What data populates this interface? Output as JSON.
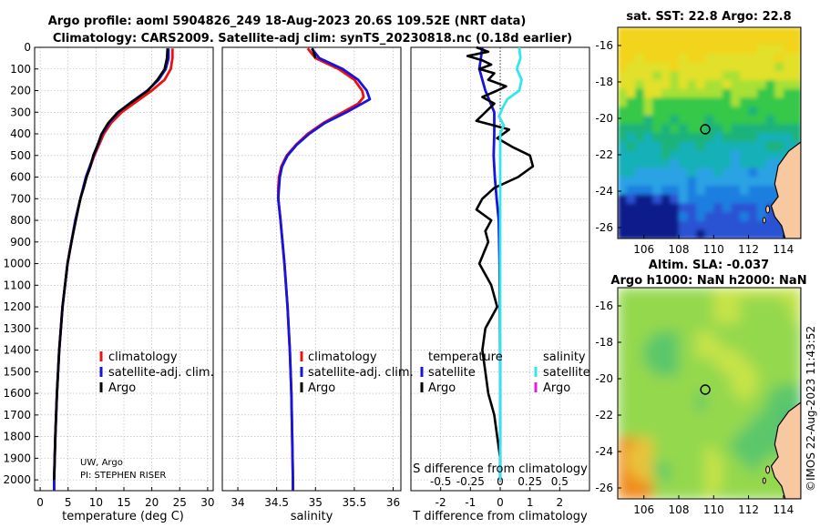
{
  "titles": {
    "line1": "Argo profile: aoml 5904826_249 18-Aug-2023 20.6S 109.52E (NRT data)",
    "line2": "Climatology: CARS2009. Satellite-adj clim: synTS_20230818.nc (0.18d earlier)"
  },
  "colors": {
    "climatology": "#ee1111",
    "satellite_clim": "#1515dd",
    "argo": "#000000",
    "sal_satellite": "#33e6ee",
    "sal_argo": "#dd22dd",
    "land": "#f8c9a0",
    "grid": "#b0b0b0"
  },
  "chart_data": [
    {
      "name": "temperature-profile",
      "type": "line",
      "xlabel": "temperature (deg C)",
      "xlim": [
        -1,
        31
      ],
      "ylim": [
        0,
        2050
      ],
      "xticks": [
        0,
        5,
        10,
        15,
        20,
        25,
        30
      ],
      "yticks": [
        0,
        100,
        200,
        300,
        400,
        500,
        600,
        700,
        800,
        900,
        1000,
        1100,
        1200,
        1300,
        1400,
        1500,
        1600,
        1700,
        1800,
        1900,
        2000
      ],
      "legend": [
        "climatology",
        "satellite-adj. clim.",
        "Argo"
      ],
      "series": [
        {
          "name": "climatology",
          "key": "climatology",
          "depth": [
            5,
            50,
            100,
            150,
            200,
            250,
            300,
            350,
            400,
            500,
            600,
            700,
            800,
            1000,
            1200,
            1400,
            1600,
            1800,
            2000,
            2050
          ],
          "values": [
            23.7,
            23.7,
            23.4,
            22.3,
            20.0,
            17.3,
            14.6,
            12.7,
            11.4,
            9.7,
            8.3,
            7.2,
            6.3,
            4.9,
            4.0,
            3.4,
            3.0,
            2.7,
            2.5,
            2.5
          ]
        },
        {
          "name": "satellite-adj. clim.",
          "key": "satellite_clim",
          "depth": [
            5,
            50,
            100,
            150,
            200,
            250,
            300,
            350,
            400,
            500,
            600,
            700,
            800,
            1000,
            1200,
            1400,
            1600,
            1800,
            2000,
            2050
          ],
          "values": [
            23.0,
            23.0,
            22.5,
            21.2,
            19.2,
            16.5,
            14.0,
            12.3,
            11.1,
            9.6,
            8.2,
            7.2,
            6.3,
            4.9,
            4.0,
            3.4,
            3.0,
            2.7,
            2.5,
            2.5
          ]
        },
        {
          "name": "Argo",
          "key": "argo",
          "depth": [
            5,
            50,
            100,
            150,
            200,
            250,
            300,
            350,
            400,
            450,
            500,
            550,
            600,
            650,
            700,
            800,
            900,
            1000,
            1200,
            1400,
            1600,
            1800,
            2000
          ],
          "values": [
            22.8,
            22.7,
            22.3,
            21.0,
            19.3,
            16.6,
            13.9,
            12.2,
            11.0,
            10.3,
            9.5,
            9.0,
            8.3,
            7.8,
            7.2,
            6.4,
            5.6,
            4.9,
            4.0,
            3.4,
            3.0,
            2.7,
            2.5
          ]
        }
      ]
    },
    {
      "name": "salinity-profile",
      "type": "line",
      "xlabel": "salinity",
      "xlim": [
        33.8,
        36.1
      ],
      "ylim": [
        0,
        2050
      ],
      "xticks": [
        34,
        34.5,
        35,
        35.5,
        36
      ],
      "legend": [
        "climatology",
        "satellite-adj. clim.",
        "Argo"
      ],
      "series": [
        {
          "name": "climatology",
          "key": "climatology",
          "depth": [
            5,
            50,
            100,
            150,
            200,
            230,
            260,
            300,
            350,
            400,
            450,
            500,
            550,
            600,
            650,
            700,
            800,
            1000,
            1200,
            1400,
            1600,
            1800,
            2000,
            2050
          ],
          "values": [
            34.9,
            35.0,
            35.3,
            35.5,
            35.6,
            35.62,
            35.55,
            35.35,
            35.1,
            34.9,
            34.75,
            34.63,
            34.56,
            34.53,
            34.52,
            34.52,
            34.55,
            34.6,
            34.64,
            34.67,
            34.69,
            34.7,
            34.71,
            34.71
          ]
        },
        {
          "name": "satellite-adj. clim.",
          "key": "satellite_clim",
          "depth": [
            5,
            50,
            100,
            150,
            200,
            240,
            260,
            300,
            350,
            400,
            450,
            500,
            550,
            600,
            650,
            700,
            800,
            1000,
            1200,
            1400,
            1600,
            1800,
            2000,
            2050
          ],
          "values": [
            34.95,
            35.05,
            35.35,
            35.55,
            35.66,
            35.7,
            35.6,
            35.4,
            35.12,
            34.92,
            34.76,
            34.64,
            34.57,
            34.54,
            34.53,
            34.52,
            34.55,
            34.6,
            34.64,
            34.67,
            34.69,
            34.7,
            34.71,
            34.71
          ]
        },
        {
          "name": "Argo",
          "key": "argo",
          "depth": [
            5,
            50
          ],
          "values": [
            34.96,
            35.0
          ]
        }
      ]
    },
    {
      "name": "difference-profile",
      "type": "line",
      "xlabel": "T difference from climatology",
      "x2label": "S difference from climatology",
      "xlim": [
        -3,
        3
      ],
      "ylim": [
        0,
        2050
      ],
      "xticks": [
        -2,
        -1,
        0,
        1,
        2
      ],
      "xticklabels": [
        "-2",
        "-1",
        "0",
        "1",
        "2"
      ],
      "x2ticks": [
        -0.5,
        -0.25,
        0,
        0.25,
        0.5
      ],
      "x2ticklabels": [
        "-0.5",
        "-0.25",
        "0",
        "0.25",
        "0.5"
      ],
      "legend_temperature": {
        "title": "temperature",
        "items": [
          "satellite",
          "Argo"
        ]
      },
      "legend_salinity": {
        "title": "salinity",
        "items": [
          "satellite",
          "Argo"
        ]
      },
      "series": [
        {
          "name": "T satellite",
          "key": "satellite_clim",
          "depth": [
            0,
            50,
            100,
            150,
            200,
            250,
            300,
            400,
            500,
            600,
            700,
            800,
            1000,
            1500,
            2000
          ],
          "values": [
            -0.6,
            -0.65,
            -0.7,
            -0.6,
            -0.5,
            -0.35,
            -0.2,
            -0.2,
            -0.22,
            -0.18,
            -0.12,
            -0.05,
            -0.02,
            0,
            0
          ]
        },
        {
          "name": "T Argo",
          "key": "argo",
          "depth": [
            0,
            20,
            40,
            60,
            80,
            100,
            120,
            150,
            180,
            200,
            230,
            260,
            300,
            340,
            380,
            420,
            460,
            500,
            550,
            600,
            650,
            700,
            750,
            800,
            850,
            900,
            1000,
            1100,
            1200,
            1300,
            1400,
            1500,
            1600,
            1700,
            1800,
            1900,
            2000
          ],
          "values": [
            -0.8,
            -0.4,
            -1.1,
            -0.6,
            -0.3,
            -0.7,
            -0.2,
            -0.4,
            0.2,
            -0.1,
            -0.6,
            -0.2,
            -0.5,
            -0.8,
            0.3,
            -0.1,
            0.4,
            1.0,
            1.1,
            0.6,
            -0.2,
            -0.6,
            -0.8,
            -0.3,
            -0.5,
            -0.4,
            -0.7,
            -0.3,
            -0.1,
            -0.5,
            -0.6,
            -0.5,
            -0.4,
            -0.2,
            -0.1,
            0,
            0
          ]
        },
        {
          "name": "S satellite",
          "key": "sal_satellite",
          "depth": [
            0,
            50,
            100,
            150,
            200,
            240,
            280,
            320,
            360,
            400,
            500,
            600,
            700,
            800,
            1000,
            1200,
            1500,
            2000
          ],
          "values": [
            0.16,
            0.17,
            0.14,
            0.18,
            0.16,
            0.06,
            0.02,
            -0.01,
            0.03,
            0.0,
            0.0,
            0.0,
            0.0,
            0.0,
            0.0,
            0.0,
            0.0,
            0.0
          ]
        }
      ]
    },
    {
      "name": "sst-map",
      "type": "heatmap",
      "title": "sat. SST: 22.8 Argo: 22.8",
      "xlim": [
        104.5,
        115
      ],
      "ylim": [
        -26.6,
        -15
      ],
      "xticks": [
        106,
        108,
        110,
        112,
        114
      ],
      "yticks": [
        -16,
        -18,
        -20,
        -22,
        -24,
        -26
      ],
      "argo_position": {
        "lon": 109.52,
        "lat": -20.6
      }
    },
    {
      "name": "sla-map",
      "type": "heatmap",
      "title": "Altim. SLA: -0.037",
      "subtitle": "Argo h1000: NaN h2000: NaN",
      "xlim": [
        104.5,
        115
      ],
      "ylim": [
        -26.6,
        -15
      ],
      "xticks": [
        106,
        108,
        110,
        112,
        114
      ],
      "yticks": [
        -16,
        -18,
        -20,
        -22,
        -24,
        -26
      ],
      "argo_position": {
        "lon": 109.52,
        "lat": -20.6
      }
    }
  ],
  "annotations": {
    "institution": "UW, Argo",
    "pi": "PI: STEPHEN RISER",
    "credit": "©IMOS 22-Aug-2023 11:43:52"
  }
}
